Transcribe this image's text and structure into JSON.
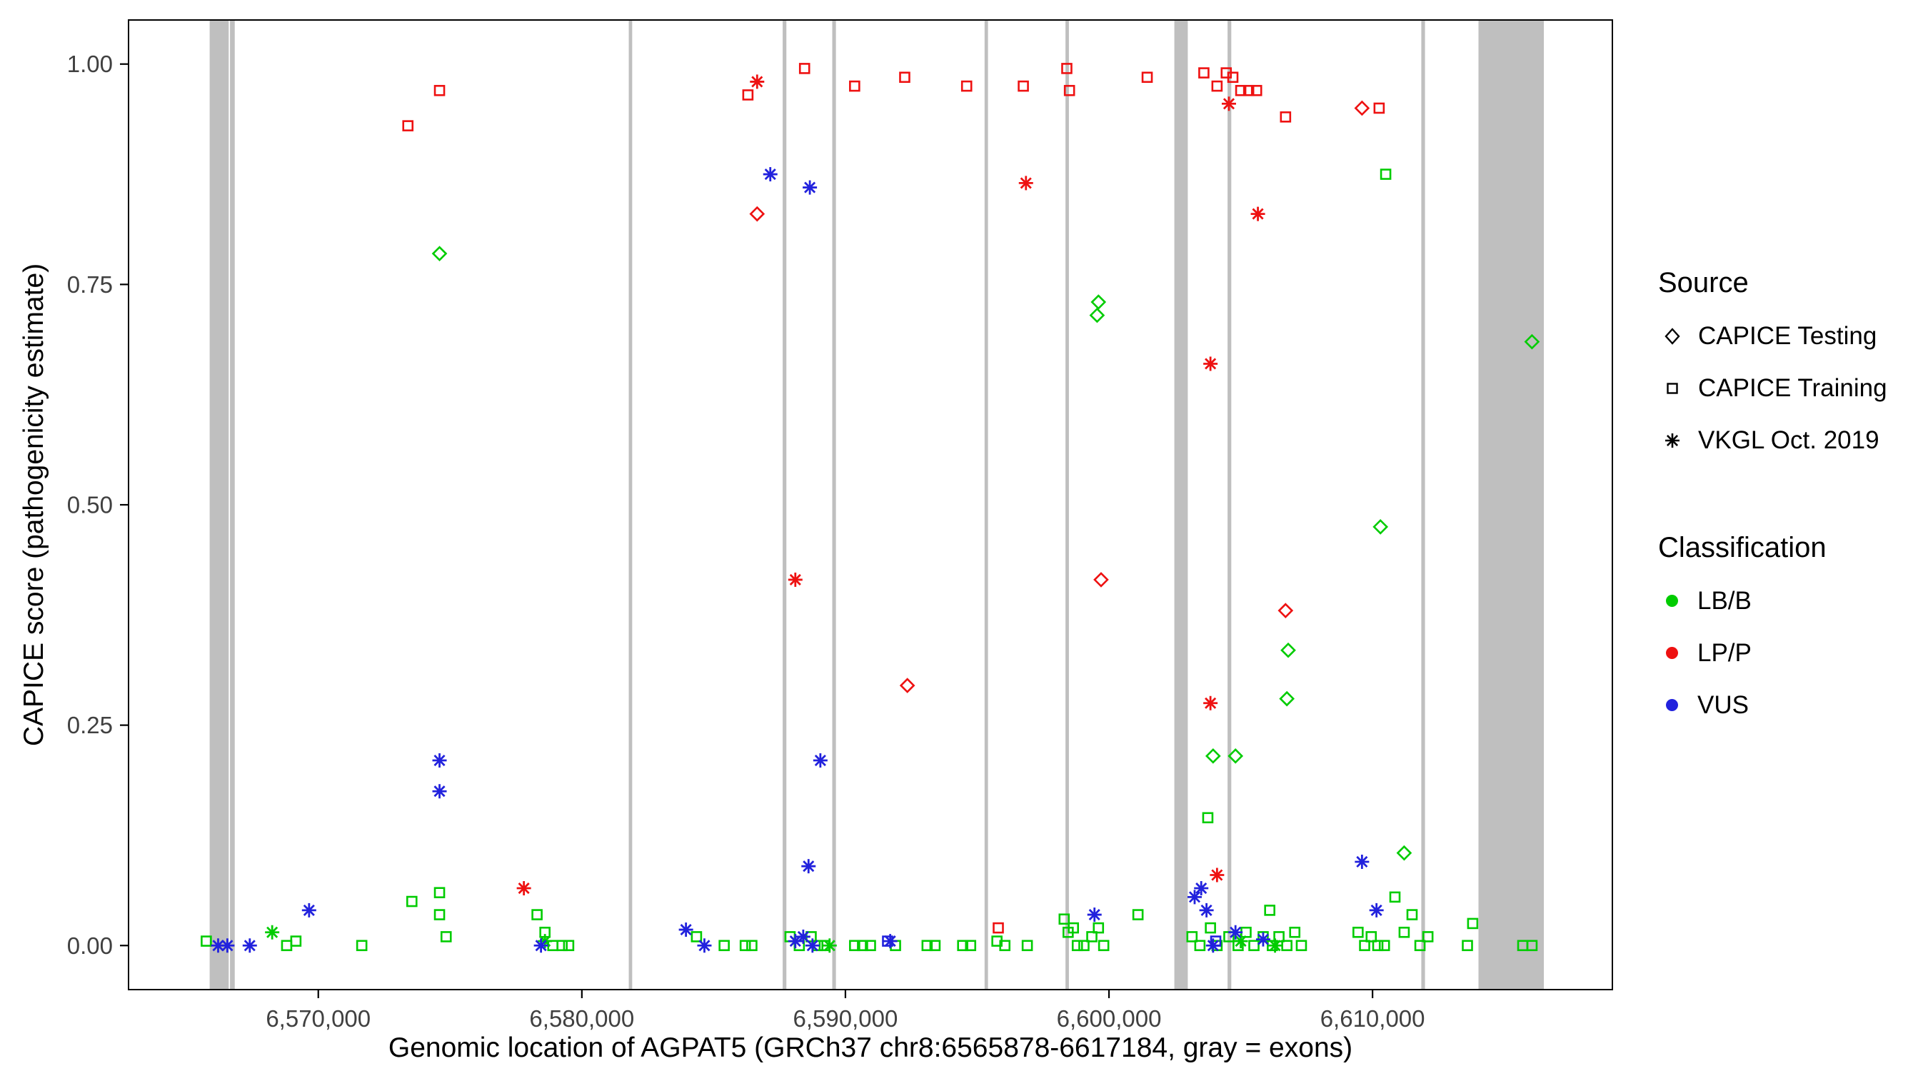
{
  "chart_data": {
    "type": "scatter",
    "title": "",
    "xlabel": "Genomic location of AGPAT5 (GRCh37 chr8:6565878-6617184, gray = exons)",
    "ylabel": "CAPICE score (pathogenicity estimate)",
    "xlim": [
      6562800,
      6619100
    ],
    "ylim": [
      -0.05,
      1.05
    ],
    "grid": false,
    "legend_position": "right",
    "x_ticks": [
      {
        "value": 6570000,
        "label": "6,570,000"
      },
      {
        "value": 6580000,
        "label": "6,580,000"
      },
      {
        "value": 6590000,
        "label": "6,590,000"
      },
      {
        "value": 6600000,
        "label": "6,600,000"
      },
      {
        "value": 6610000,
        "label": "6,610,000"
      }
    ],
    "y_ticks": [
      {
        "value": 0.0,
        "label": "0.00"
      },
      {
        "value": 0.25,
        "label": "0.25"
      },
      {
        "value": 0.5,
        "label": "0.50"
      },
      {
        "value": 0.75,
        "label": "0.75"
      },
      {
        "value": 1.0,
        "label": "1.00"
      }
    ],
    "exon_color": "#BFBFBF",
    "exons": [
      [
        6565878,
        6566600
      ],
      [
        6566650,
        6566830
      ],
      [
        6581780,
        6581910
      ],
      [
        6587620,
        6587760
      ],
      [
        6589500,
        6589640
      ],
      [
        6595280,
        6595410
      ],
      [
        6598350,
        6598480
      ],
      [
        6602480,
        6602990
      ],
      [
        6604500,
        6604640
      ],
      [
        6611850,
        6611990
      ],
      [
        6614020,
        6616500
      ]
    ],
    "colors": {
      "LB/B": "#00CC00",
      "LP/P": "#EE1111",
      "VUS": "#2222DD"
    },
    "shape_by_source": {
      "testing": "diamond",
      "training": "square",
      "vkgl": "asterisk"
    },
    "legend": {
      "source_title": "Source",
      "source_items": [
        {
          "key": "testing",
          "label": "CAPICE Testing",
          "shape": "diamond"
        },
        {
          "key": "training",
          "label": "CAPICE Training",
          "shape": "square"
        },
        {
          "key": "vkgl",
          "label": "VKGL Oct. 2019",
          "shape": "asterisk"
        }
      ],
      "class_title": "Classification",
      "class_items": [
        {
          "label": "LB/B",
          "color": "#00CC00"
        },
        {
          "label": "LP/P",
          "color": "#EE1111"
        },
        {
          "label": "VUS",
          "color": "#2222DD"
        }
      ]
    },
    "points": [
      [
        6573400,
        0.93,
        "LP/P",
        "training"
      ],
      [
        6574600,
        0.97,
        "LP/P",
        "training"
      ],
      [
        6586300,
        0.965,
        "LP/P",
        "training"
      ],
      [
        6588450,
        0.995,
        "LP/P",
        "training"
      ],
      [
        6590350,
        0.975,
        "LP/P",
        "training"
      ],
      [
        6592250,
        0.985,
        "LP/P",
        "training"
      ],
      [
        6594600,
        0.975,
        "LP/P",
        "training"
      ],
      [
        6596750,
        0.975,
        "LP/P",
        "training"
      ],
      [
        6598400,
        0.995,
        "LP/P",
        "training"
      ],
      [
        6598500,
        0.97,
        "LP/P",
        "training"
      ],
      [
        6601450,
        0.985,
        "LP/P",
        "training"
      ],
      [
        6603600,
        0.99,
        "LP/P",
        "training"
      ],
      [
        6604100,
        0.975,
        "LP/P",
        "training"
      ],
      [
        6604450,
        0.99,
        "LP/P",
        "training"
      ],
      [
        6604700,
        0.985,
        "LP/P",
        "training"
      ],
      [
        6605000,
        0.97,
        "LP/P",
        "training"
      ],
      [
        6605300,
        0.97,
        "LP/P",
        "training"
      ],
      [
        6605600,
        0.97,
        "LP/P",
        "training"
      ],
      [
        6606700,
        0.94,
        "LP/P",
        "training"
      ],
      [
        6610250,
        0.95,
        "LP/P",
        "training"
      ],
      [
        6595800,
        0.02,
        "LP/P",
        "training"
      ],
      [
        6577800,
        0.065,
        "LP/P",
        "vkgl"
      ],
      [
        6586650,
        0.98,
        "LP/P",
        "vkgl"
      ],
      [
        6588100,
        0.415,
        "LP/P",
        "vkgl"
      ],
      [
        6596850,
        0.865,
        "LP/P",
        "vkgl"
      ],
      [
        6604550,
        0.955,
        "LP/P",
        "vkgl"
      ],
      [
        6605650,
        0.83,
        "LP/P",
        "vkgl"
      ],
      [
        6603850,
        0.66,
        "LP/P",
        "vkgl"
      ],
      [
        6603850,
        0.275,
        "LP/P",
        "vkgl"
      ],
      [
        6604100,
        0.08,
        "LP/P",
        "vkgl"
      ],
      [
        6586650,
        0.83,
        "LP/P",
        "testing"
      ],
      [
        6592350,
        0.295,
        "LP/P",
        "testing"
      ],
      [
        6599700,
        0.415,
        "LP/P",
        "testing"
      ],
      [
        6606700,
        0.38,
        "LP/P",
        "testing"
      ],
      [
        6609600,
        0.95,
        "LP/P",
        "testing"
      ],
      [
        6574600,
        0.785,
        "LB/B",
        "testing"
      ],
      [
        6599600,
        0.73,
        "LB/B",
        "testing"
      ],
      [
        6599550,
        0.715,
        "LB/B",
        "testing"
      ],
      [
        6603950,
        0.215,
        "LB/B",
        "testing"
      ],
      [
        6604800,
        0.215,
        "LB/B",
        "testing"
      ],
      [
        6606800,
        0.335,
        "LB/B",
        "testing"
      ],
      [
        6606750,
        0.28,
        "LB/B",
        "testing"
      ],
      [
        6610300,
        0.475,
        "LB/B",
        "testing"
      ],
      [
        6611200,
        0.105,
        "LB/B",
        "testing"
      ],
      [
        6616050,
        0.685,
        "LB/B",
        "testing"
      ],
      [
        6565750,
        0.005,
        "LB/B",
        "training"
      ],
      [
        6568800,
        0.0,
        "LB/B",
        "training"
      ],
      [
        6569150,
        0.005,
        "LB/B",
        "training"
      ],
      [
        6571650,
        0.0,
        "LB/B",
        "training"
      ],
      [
        6573550,
        0.05,
        "LB/B",
        "training"
      ],
      [
        6574600,
        0.06,
        "LB/B",
        "training"
      ],
      [
        6574600,
        0.035,
        "LB/B",
        "training"
      ],
      [
        6574850,
        0.01,
        "LB/B",
        "training"
      ],
      [
        6578300,
        0.035,
        "LB/B",
        "training"
      ],
      [
        6578600,
        0.015,
        "LB/B",
        "training"
      ],
      [
        6578900,
        0.0,
        "LB/B",
        "training"
      ],
      [
        6579250,
        0.0,
        "LB/B",
        "training"
      ],
      [
        6579500,
        0.0,
        "LB/B",
        "training"
      ],
      [
        6584350,
        0.01,
        "LB/B",
        "training"
      ],
      [
        6585400,
        0.0,
        "LB/B",
        "training"
      ],
      [
        6586200,
        0.0,
        "LB/B",
        "training"
      ],
      [
        6586450,
        0.0,
        "LB/B",
        "training"
      ],
      [
        6587900,
        0.01,
        "LB/B",
        "training"
      ],
      [
        6588250,
        0.0,
        "LB/B",
        "training"
      ],
      [
        6588700,
        0.01,
        "LB/B",
        "training"
      ],
      [
        6588950,
        0.0,
        "LB/B",
        "training"
      ],
      [
        6589200,
        0.0,
        "LB/B",
        "training"
      ],
      [
        6590350,
        0.0,
        "LB/B",
        "training"
      ],
      [
        6590650,
        0.0,
        "LB/B",
        "training"
      ],
      [
        6590950,
        0.0,
        "LB/B",
        "training"
      ],
      [
        6591900,
        0.0,
        "LB/B",
        "training"
      ],
      [
        6593100,
        0.0,
        "LB/B",
        "training"
      ],
      [
        6593400,
        0.0,
        "LB/B",
        "training"
      ],
      [
        6594450,
        0.0,
        "LB/B",
        "training"
      ],
      [
        6594750,
        0.0,
        "LB/B",
        "training"
      ],
      [
        6595750,
        0.005,
        "LB/B",
        "training"
      ],
      [
        6596050,
        0.0,
        "LB/B",
        "training"
      ],
      [
        6596900,
        0.0,
        "LB/B",
        "training"
      ],
      [
        6598300,
        0.03,
        "LB/B",
        "training"
      ],
      [
        6598450,
        0.015,
        "LB/B",
        "training"
      ],
      [
        6598650,
        0.02,
        "LB/B",
        "training"
      ],
      [
        6598800,
        0.0,
        "LB/B",
        "training"
      ],
      [
        6599050,
        0.0,
        "LB/B",
        "training"
      ],
      [
        6599350,
        0.01,
        "LB/B",
        "training"
      ],
      [
        6599600,
        0.02,
        "LB/B",
        "training"
      ],
      [
        6599800,
        0.0,
        "LB/B",
        "training"
      ],
      [
        6601100,
        0.035,
        "LB/B",
        "training"
      ],
      [
        6603150,
        0.01,
        "LB/B",
        "training"
      ],
      [
        6603450,
        0.0,
        "LB/B",
        "training"
      ],
      [
        6603750,
        0.145,
        "LB/B",
        "training"
      ],
      [
        6603850,
        0.02,
        "LB/B",
        "training"
      ],
      [
        6604100,
        0.0,
        "LB/B",
        "training"
      ],
      [
        6604550,
        0.01,
        "LB/B",
        "training"
      ],
      [
        6604900,
        0.0,
        "LB/B",
        "training"
      ],
      [
        6605200,
        0.015,
        "LB/B",
        "training"
      ],
      [
        6605500,
        0.0,
        "LB/B",
        "training"
      ],
      [
        6605850,
        0.01,
        "LB/B",
        "training"
      ],
      [
        6606100,
        0.04,
        "LB/B",
        "training"
      ],
      [
        6606200,
        0.0,
        "LB/B",
        "training"
      ],
      [
        6606450,
        0.01,
        "LB/B",
        "training"
      ],
      [
        6606750,
        0.0,
        "LB/B",
        "training"
      ],
      [
        6607050,
        0.015,
        "LB/B",
        "training"
      ],
      [
        6607300,
        0.0,
        "LB/B",
        "training"
      ],
      [
        6609450,
        0.015,
        "LB/B",
        "training"
      ],
      [
        6609700,
        0.0,
        "LB/B",
        "training"
      ],
      [
        6609950,
        0.01,
        "LB/B",
        "training"
      ],
      [
        6610200,
        0.0,
        "LB/B",
        "training"
      ],
      [
        6610450,
        0.0,
        "LB/B",
        "training"
      ],
      [
        6610500,
        0.875,
        "LB/B",
        "training"
      ],
      [
        6610850,
        0.055,
        "LB/B",
        "training"
      ],
      [
        6611200,
        0.015,
        "LB/B",
        "training"
      ],
      [
        6611500,
        0.035,
        "LB/B",
        "training"
      ],
      [
        6611800,
        0.0,
        "LB/B",
        "training"
      ],
      [
        6612100,
        0.01,
        "LB/B",
        "training"
      ],
      [
        6613600,
        0.0,
        "LB/B",
        "training"
      ],
      [
        6613800,
        0.025,
        "LB/B",
        "training"
      ],
      [
        6615700,
        0.0,
        "LB/B",
        "training"
      ],
      [
        6616050,
        0.0,
        "LB/B",
        "training"
      ],
      [
        6568250,
        0.015,
        "LB/B",
        "vkgl"
      ],
      [
        6578600,
        0.005,
        "LB/B",
        "vkgl"
      ],
      [
        6589400,
        0.0,
        "LB/B",
        "vkgl"
      ],
      [
        6605000,
        0.005,
        "LB/B",
        "vkgl"
      ],
      [
        6606300,
        0.0,
        "LB/B",
        "vkgl"
      ],
      [
        6566200,
        0.0,
        "VUS",
        "vkgl"
      ],
      [
        6566550,
        0.0,
        "VUS",
        "vkgl"
      ],
      [
        6567400,
        0.0,
        "VUS",
        "vkgl"
      ],
      [
        6569650,
        0.04,
        "VUS",
        "vkgl"
      ],
      [
        6574600,
        0.21,
        "VUS",
        "vkgl"
      ],
      [
        6574600,
        0.175,
        "VUS",
        "vkgl"
      ],
      [
        6578450,
        0.0,
        "VUS",
        "vkgl"
      ],
      [
        6583950,
        0.018,
        "VUS",
        "vkgl"
      ],
      [
        6584650,
        0.0,
        "VUS",
        "vkgl"
      ],
      [
        6587150,
        0.875,
        "VUS",
        "vkgl"
      ],
      [
        6588650,
        0.86,
        "VUS",
        "vkgl"
      ],
      [
        6588100,
        0.005,
        "VUS",
        "vkgl"
      ],
      [
        6588400,
        0.01,
        "VUS",
        "vkgl"
      ],
      [
        6588750,
        0.0,
        "VUS",
        "vkgl"
      ],
      [
        6588600,
        0.09,
        "VUS",
        "vkgl"
      ],
      [
        6589050,
        0.21,
        "VUS",
        "vkgl"
      ],
      [
        6591700,
        0.005,
        "VUS",
        "vkgl"
      ],
      [
        6599450,
        0.035,
        "VUS",
        "vkgl"
      ],
      [
        6603250,
        0.055,
        "VUS",
        "vkgl"
      ],
      [
        6603500,
        0.065,
        "VUS",
        "vkgl"
      ],
      [
        6603700,
        0.04,
        "VUS",
        "vkgl"
      ],
      [
        6603950,
        0.0,
        "VUS",
        "vkgl"
      ],
      [
        6604800,
        0.015,
        "VUS",
        "vkgl"
      ],
      [
        6605850,
        0.007,
        "VUS",
        "vkgl"
      ],
      [
        6609600,
        0.095,
        "VUS",
        "vkgl"
      ],
      [
        6610150,
        0.04,
        "VUS",
        "vkgl"
      ],
      [
        6591600,
        0.005,
        "VUS",
        "training"
      ],
      [
        6604050,
        0.005,
        "VUS",
        "training"
      ]
    ]
  }
}
